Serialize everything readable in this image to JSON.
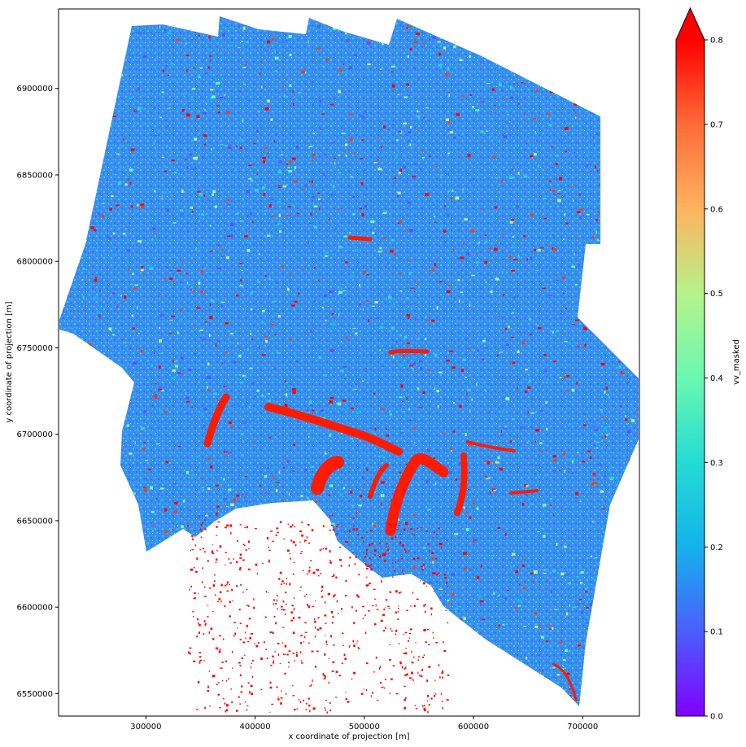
{
  "chart_data": {
    "type": "heatmap",
    "title": "",
    "xlabel": "x coordinate of projection [m]",
    "ylabel": "y coordinate of projection [m]",
    "xlim": [
      220000,
      752000
    ],
    "ylim": [
      6537000,
      6946000
    ],
    "x_ticks": [
      300000,
      400000,
      500000,
      600000,
      700000
    ],
    "x_tick_labels": [
      "300000",
      "400000",
      "500000",
      "600000",
      "700000"
    ],
    "y_ticks": [
      6550000,
      6600000,
      6650000,
      6700000,
      6750000,
      6800000,
      6850000,
      6900000
    ],
    "y_tick_labels": [
      "6550000",
      "6600000",
      "6650000",
      "6700000",
      "6750000",
      "6800000",
      "6850000",
      "6900000"
    ],
    "colorbar": {
      "label": "vv_masked",
      "colormap": "rainbow",
      "vmin": 0.0,
      "vmax": 0.8,
      "extend": "max",
      "ticks": [
        0.0,
        0.1,
        0.2,
        0.3,
        0.4,
        0.5,
        0.6,
        0.7,
        0.8
      ],
      "tick_labels": [
        "0.0",
        "0.1",
        "0.2",
        "0.3",
        "0.4",
        "0.5",
        "0.6",
        "0.7",
        "0.8"
      ]
    },
    "grid": false,
    "colors": {
      "dominant_low": "#2f7ff0",
      "mid": "#33e0c0",
      "high": "#ff0000"
    }
  }
}
